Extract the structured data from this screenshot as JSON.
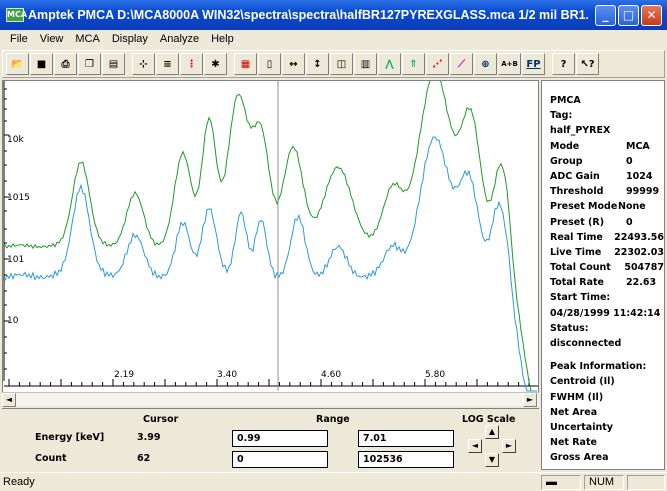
{
  "window": {
    "title": "Amptek PMCA    D:\\MCA8000A WIN32\\spectra\\spectra\\halfBR127PYREXGLASS.mca    1/2 mil BR1...",
    "icon_label": "MCA"
  },
  "menu": [
    "File",
    "View",
    "MCA",
    "Display",
    "Analyze",
    "Help"
  ],
  "toolbar": {
    "buttons": [
      "open-icon",
      "save-icon",
      "print-icon",
      "copy-icon",
      "properties-icon",
      "calibrate-icon",
      "roi-icon",
      "traffic-light-icon",
      "clear-icon",
      "color-icon",
      "single-icon",
      "expand-icon",
      "compress-icon",
      "fullscale-icon",
      "bar-icon",
      "line-icon",
      "autoscale-icon",
      "log-icon",
      "linear-icon",
      "zoom-icon",
      "compare-icon",
      "fpl-icon",
      "help-icon",
      "context-help-icon"
    ],
    "compare_label": "A+B",
    "fp_label": "FP"
  },
  "spectrum": {
    "y_labels": [
      "10k",
      "1015",
      "101",
      "10"
    ],
    "x_labels": [
      "2.19",
      "3.40",
      "4.60",
      "5.80"
    ],
    "colors": {
      "green": "#1f9a2a",
      "blue": "#2a9bd8",
      "cursor": "#909090"
    }
  },
  "info": {
    "lines": [
      "PMCA",
      "Tag:",
      "half_PYREX"
    ],
    "pairs": [
      {
        "k": "Mode",
        "v": "MCA"
      },
      {
        "k": "Group",
        "v": "0"
      },
      {
        "k": "ADC Gain",
        "v": "1024"
      },
      {
        "k": "Threshold",
        "v": "99999"
      },
      {
        "k": "Preset Mode",
        "v": "None"
      },
      {
        "k": "Preset (R)",
        "v": "0"
      },
      {
        "k": "Real Time",
        "v": "22493.56"
      },
      {
        "k": "Live Time",
        "v": "22302.03"
      },
      {
        "k": "Total Count",
        "v": "504787"
      },
      {
        "k": "Total Rate",
        "v": "22.63"
      }
    ],
    "start_label": "Start Time:",
    "start_time": "04/28/1999 11:42:14",
    "status_label": "Status:",
    "status": "disconnected",
    "peak_lines": [
      "Peak Information:",
      "Centroid (Il)",
      "FWHM (Il)",
      "Net Area",
      "Uncertainty",
      "Net Rate",
      "Gross Area"
    ]
  },
  "bottom": {
    "cursor_header": "Cursor",
    "range_header": "Range",
    "log_header": "LOG Scale",
    "energy_label": "Energy [keV]",
    "energy_cursor": "3.99",
    "energy_range_lo": "0.99",
    "energy_range_hi": "7.01",
    "count_label": "Count",
    "count_cursor": "62",
    "count_range_lo": "0",
    "count_range_hi": "102536"
  },
  "status": {
    "text": "Ready",
    "num": "NUM"
  }
}
